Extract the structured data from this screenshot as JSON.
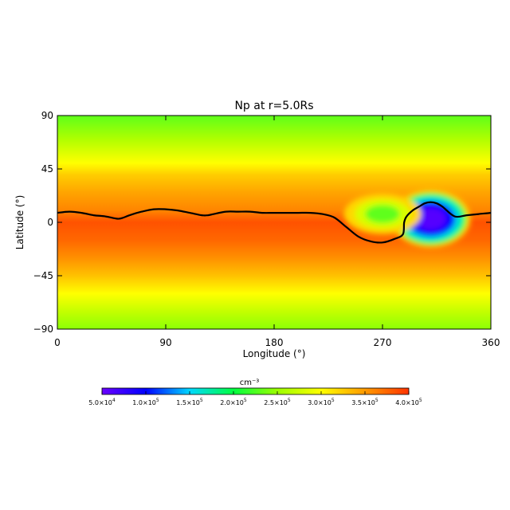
{
  "chart_data": {
    "type": "heatmap",
    "title": "Np at r=5.0Rs",
    "xlabel": "Longitude (°)",
    "ylabel": "Latitude (°)",
    "xlim": [
      0,
      360
    ],
    "ylim": [
      -90,
      90
    ],
    "x_ticks": [
      0,
      90,
      180,
      270,
      360
    ],
    "x_tick_labels": [
      "0",
      "90",
      "180",
      "270",
      "360"
    ],
    "y_ticks": [
      90,
      45,
      0,
      -45,
      -90
    ],
    "y_tick_labels": [
      "90",
      "45",
      "0",
      "−45",
      "−90"
    ],
    "colorbar": {
      "unit": "cm⁻³",
      "min": 50000,
      "max": 400000,
      "ticks": [
        50000,
        100000,
        150000,
        200000,
        250000,
        300000,
        350000,
        400000
      ],
      "tick_mantissas": [
        "5.0",
        "1.0",
        "1.5",
        "2.0",
        "2.5",
        "3.0",
        "3.5",
        "4.0"
      ],
      "tick_exponents": [
        "4",
        "5",
        "5",
        "5",
        "5",
        "5",
        "5",
        "5"
      ],
      "tick_base": "×10",
      "colormap": [
        "#6a00ff",
        "#0000ff",
        "#00d8ff",
        "#00ff40",
        "#9cff00",
        "#ffff00",
        "#ff9a00",
        "#ff3300"
      ]
    },
    "background_bands": [
      {
        "lat": 90,
        "value": 230000
      },
      {
        "lat": 70,
        "value": 260000
      },
      {
        "lat": 50,
        "value": 300000
      },
      {
        "lat": 40,
        "value": 325000
      },
      {
        "lat": 25,
        "value": 345000
      },
      {
        "lat": 10,
        "value": 360000
      },
      {
        "lat": 0,
        "value": 385000
      },
      {
        "lat": -15,
        "value": 375000
      },
      {
        "lat": -30,
        "value": 355000
      },
      {
        "lat": -45,
        "value": 330000
      },
      {
        "lat": -60,
        "value": 300000
      },
      {
        "lat": -75,
        "value": 270000
      },
      {
        "lat": -90,
        "value": 245000
      }
    ],
    "features": [
      {
        "name": "low-density-core",
        "lon_center": 310,
        "lat_center": 3,
        "lon_radius": 33,
        "lat_radius": 24,
        "levels": [
          {
            "scale": 1.0,
            "value": 320000
          },
          {
            "scale": 0.9,
            "value": 200000
          },
          {
            "scale": 0.78,
            "value": 160000
          },
          {
            "scale": 0.62,
            "value": 100000
          },
          {
            "scale": 0.38,
            "value": 60000
          }
        ]
      },
      {
        "name": "green-lobe",
        "lon_center": 270,
        "lat_center": 7,
        "lon_radius": 32,
        "lat_radius": 17,
        "levels": [
          {
            "scale": 1.0,
            "value": 320000
          },
          {
            "scale": 0.72,
            "value": 280000
          },
          {
            "scale": 0.45,
            "value": 230000
          }
        ]
      }
    ],
    "neutral_line": {
      "color": "#000000",
      "lon": [
        0,
        10,
        20,
        30,
        40,
        50,
        55,
        60,
        70,
        80,
        90,
        100,
        110,
        120,
        125,
        130,
        140,
        150,
        160,
        170,
        180,
        190,
        200,
        210,
        220,
        230,
        240,
        250,
        260,
        270,
        280,
        287,
        288,
        290,
        295,
        300,
        305,
        310,
        315,
        320,
        330,
        340,
        350,
        360
      ],
      "lat": [
        8,
        9,
        8,
        6,
        5,
        3,
        4,
        6,
        9,
        11,
        11,
        10,
        8,
        6,
        6,
        7,
        9,
        9,
        9,
        8,
        8,
        8,
        8,
        8,
        7,
        4,
        -4,
        -12,
        -16,
        -17,
        -14,
        -10,
        0,
        5,
        10,
        13,
        16,
        17,
        16,
        13,
        5,
        6,
        7,
        8
      ]
    }
  }
}
